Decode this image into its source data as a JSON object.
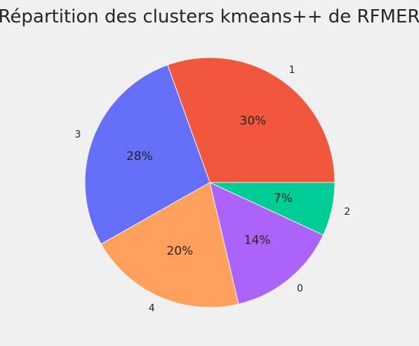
{
  "chart_data": {
    "type": "pie",
    "title": "Répartition des clusters kmeans++ de RFMER",
    "start_angle_deg": 0,
    "direction": "counterclockwise",
    "slices": [
      {
        "label": "1",
        "value": 30.5,
        "percent_label": "30%",
        "color": "#f0573c"
      },
      {
        "label": "3",
        "value": 27.7,
        "percent_label": "28%",
        "color": "#656ff9"
      },
      {
        "label": "4",
        "value": 20.5,
        "percent_label": "20%",
        "color": "#ffa05c"
      },
      {
        "label": "0",
        "value": 14.4,
        "percent_label": "14%",
        "color": "#ab63fa"
      },
      {
        "label": "2",
        "value": 6.9,
        "percent_label": "7%",
        "color": "#00cc96"
      }
    ]
  }
}
